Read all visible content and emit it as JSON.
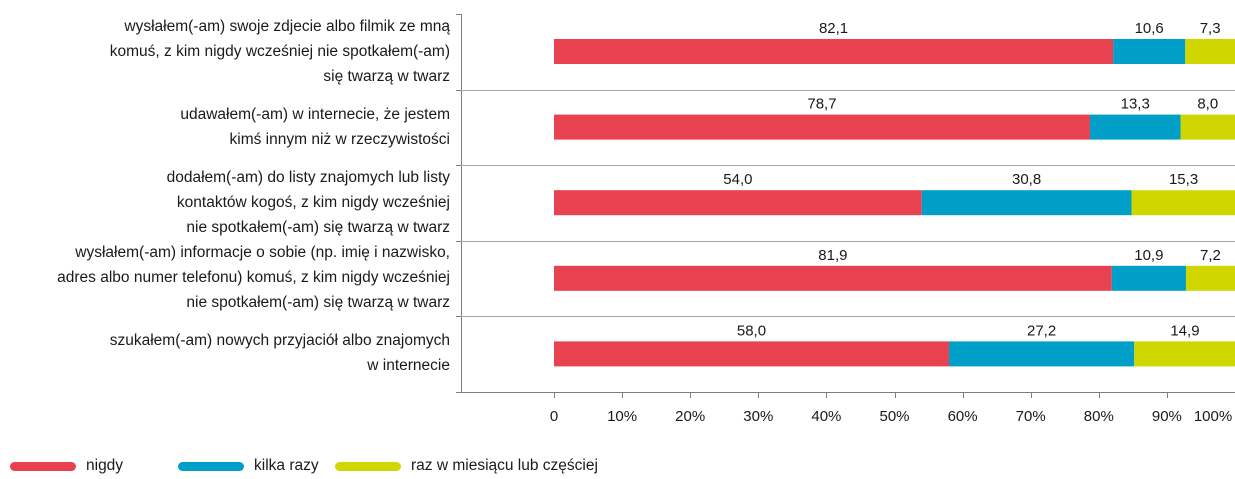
{
  "chart_data": {
    "type": "bar",
    "orientation": "horizontal",
    "stacked": true,
    "categories": [
      [
        "wysłałem(-am) swoje zdjecie albo filmik ze mną",
        "komuś, z kim nigdy wcześniej nie spotkałem(-am)",
        "się twarzą w twarz"
      ],
      [
        "udawałem(-am) w internecie, że jestem",
        "kimś innym niż w rzeczywistości"
      ],
      [
        "dodałem(-am) do listy znajomych lub listy",
        "kontaktów kogoś, z kim nigdy wcześniej",
        "nie spotkałem(-am) się twarzą w twarz"
      ],
      [
        "wysłałem(-am) informacje o sobie (np. imię i nazwisko,",
        "adres albo numer telefonu) komuś, z kim nigdy wcześniej",
        "nie spotkałem(-am) się twarzą w twarz"
      ],
      [
        "szukałem(-am) nowych przyjaciół albo znajomych",
        "w internecie"
      ]
    ],
    "series": [
      {
        "name": "nigdy",
        "color": "#e8414f",
        "values": [
          82.1,
          78.7,
          54.0,
          81.9,
          58.0
        ],
        "labels": [
          "82,1",
          "78,7",
          "54,0",
          "81,9",
          "58,0"
        ]
      },
      {
        "name": "kilka razy",
        "color": "#009fc7",
        "values": [
          10.6,
          13.3,
          30.8,
          10.9,
          27.2
        ],
        "labels": [
          "10,6",
          "13,3",
          "30,8",
          "10,9",
          "27,2"
        ]
      },
      {
        "name": "raz w miesiącu lub częściej",
        "color": "#cfd600",
        "values": [
          7.3,
          8.0,
          15.3,
          7.2,
          14.9
        ],
        "labels": [
          "7,3",
          "8,0",
          "15,3",
          "7,2",
          "14,9"
        ]
      }
    ],
    "xlim": [
      0,
      100
    ],
    "xticks": [
      "0",
      "10%",
      "20%",
      "30%",
      "40%",
      "50%",
      "60%",
      "70%",
      "80%",
      "90%",
      "100%"
    ],
    "legend_position": "bottom-left",
    "grid": false
  }
}
